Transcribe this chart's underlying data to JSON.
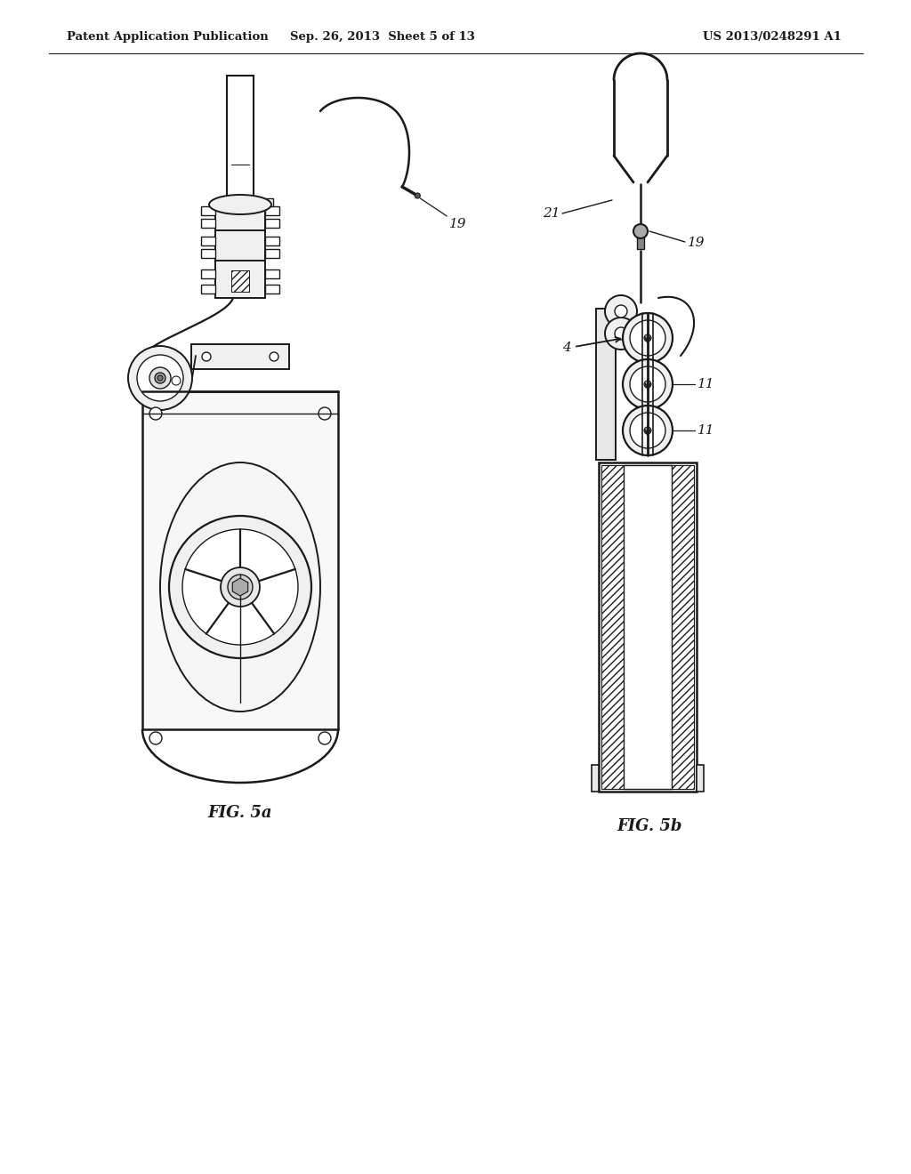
{
  "background_color": "#ffffff",
  "header_left": "Patent Application Publication",
  "header_center": "Sep. 26, 2013  Sheet 5 of 13",
  "header_right": "US 2013/0248291 A1",
  "fig5a_label": "FIG. 5a",
  "fig5b_label": "FIG. 5b",
  "label_19_left": "19",
  "label_19_right": "19",
  "label_21": "21",
  "label_4": "4",
  "label_11a": "11",
  "label_11b": "11",
  "line_color": "#1a1a1a",
  "text_color": "#1a1a1a"
}
